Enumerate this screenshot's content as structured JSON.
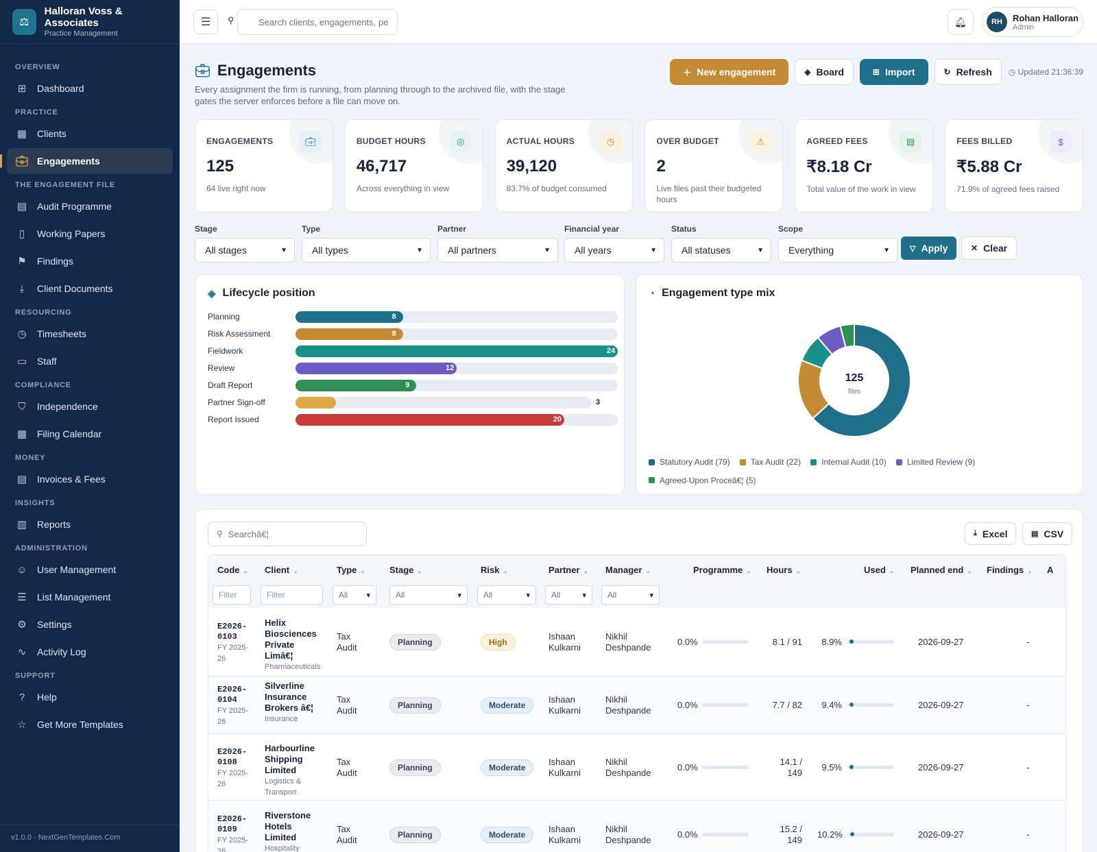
{
  "brand": {
    "name": "Halloran Voss & Associates",
    "sub": "Practice Management",
    "logo_icon": "scales-icon"
  },
  "nav": [
    {
      "section": "OVERVIEW",
      "items": [
        {
          "label": "Dashboard",
          "icon": "grid-icon"
        }
      ]
    },
    {
      "section": "PRACTICE",
      "items": [
        {
          "label": "Clients",
          "icon": "building-icon"
        },
        {
          "label": "Engagements",
          "icon": "briefcase-icon",
          "active": true
        }
      ]
    },
    {
      "section": "THE ENGAGEMENT FILE",
      "items": [
        {
          "label": "Audit Programme",
          "icon": "clipboard-icon"
        },
        {
          "label": "Working Papers",
          "icon": "file-icon"
        },
        {
          "label": "Findings",
          "icon": "flag-icon"
        },
        {
          "label": "Client Documents",
          "icon": "download-file-icon"
        }
      ]
    },
    {
      "section": "RESOURCING",
      "items": [
        {
          "label": "Timesheets",
          "icon": "clock-icon"
        },
        {
          "label": "Staff",
          "icon": "id-card-icon"
        }
      ]
    },
    {
      "section": "COMPLIANCE",
      "items": [
        {
          "label": "Independence",
          "icon": "shield-icon"
        },
        {
          "label": "Filing Calendar",
          "icon": "calendar-icon"
        }
      ]
    },
    {
      "section": "MONEY",
      "items": [
        {
          "label": "Invoices & Fees",
          "icon": "receipt-icon"
        }
      ]
    },
    {
      "section": "INSIGHTS",
      "items": [
        {
          "label": "Reports",
          "icon": "bar-chart-icon"
        }
      ]
    },
    {
      "section": "ADMINISTRATION",
      "items": [
        {
          "label": "User Management",
          "icon": "user-icon"
        },
        {
          "label": "List Management",
          "icon": "list-icon"
        },
        {
          "label": "Settings",
          "icon": "gear-icon"
        },
        {
          "label": "Activity Log",
          "icon": "pulse-icon"
        }
      ]
    },
    {
      "section": "SUPPORT",
      "items": [
        {
          "label": "Help",
          "icon": "help-icon"
        },
        {
          "label": "Get More Templates",
          "icon": "star-icon"
        }
      ]
    }
  ],
  "version": "v1.0.0 · NextGenTemplates.Com",
  "topbar": {
    "search_placeholder": "Search clients, engagements, peo",
    "user_initials": "RH",
    "user_name": "Rohan Halloran",
    "user_role": "Admin"
  },
  "page": {
    "title": "Engagements",
    "desc": "Every assignment the firm is running, from planning through to the archived file, with the stage gates the server enforces before a file can move on.",
    "btn_new": "New engagement",
    "btn_board": "Board",
    "btn_import": "Import",
    "btn_refresh": "Refresh",
    "updated": "Updated 21:36:39"
  },
  "kpis": [
    {
      "label": "ENGAGEMENTS",
      "value": "125",
      "sub": "64 live right now",
      "icon": "briefcase-icon",
      "color": "#21738f",
      "bg": "#e6f1f5"
    },
    {
      "label": "BUDGET HOURS",
      "value": "46,717",
      "sub": "Across everything in view",
      "icon": "target-icon",
      "color": "#1a8f8a",
      "bg": "#e3f4f2"
    },
    {
      "label": "ACTUAL HOURS",
      "value": "39,120",
      "sub": "83.7% of budget consumed",
      "icon": "clock-icon",
      "color": "#c48a34",
      "bg": "#fbf0de"
    },
    {
      "label": "OVER BUDGET",
      "value": "2",
      "sub": "Live files past their budgeted hours",
      "icon": "warning-icon",
      "color": "#c48a34",
      "bg": "#fdf4e0"
    },
    {
      "label": "AGREED FEES",
      "value": "₹8.18 Cr",
      "sub": "Total value of the work in view",
      "icon": "receipt-icon",
      "color": "#2f8f57",
      "bg": "#e4f3ea"
    },
    {
      "label": "FEES BILLED",
      "value": "₹5.88 Cr",
      "sub": "71.9% of agreed fees raised",
      "icon": "dollar-icon",
      "color": "#6d5bc4",
      "bg": "#eeebfa"
    }
  ],
  "filters": [
    {
      "label": "Stage",
      "value": "All stages"
    },
    {
      "label": "Type",
      "value": "All types"
    },
    {
      "label": "Partner",
      "value": "All partners"
    },
    {
      "label": "Financial year",
      "value": "All years"
    },
    {
      "label": "Status",
      "value": "All statuses"
    },
    {
      "label": "Scope",
      "value": "Everything"
    }
  ],
  "filter_apply": "Apply",
  "filter_clear": "Clear",
  "lifecycle": {
    "title": "Lifecycle position",
    "max": 24,
    "stages": [
      {
        "name": "Planning",
        "value": 8,
        "color": "#1f6f8b"
      },
      {
        "name": "Risk Assessment",
        "value": 8,
        "color": "#c48a34"
      },
      {
        "name": "Fieldwork",
        "value": 24,
        "color": "#1a8f8a"
      },
      {
        "name": "Review",
        "value": 12,
        "color": "#6d5bc4"
      },
      {
        "name": "Draft Report",
        "value": 9,
        "color": "#2f8f57"
      },
      {
        "name": "Partner Sign-off",
        "value": 3,
        "color": "#dfa843"
      },
      {
        "name": "Report Issued",
        "value": 20,
        "color": "#c93c3c"
      }
    ]
  },
  "chart_data": {
    "type": "pie",
    "title": "Engagement type mix",
    "center_value": "125",
    "center_label": "files",
    "slices": [
      {
        "name": "Statutory Audit",
        "value": 79,
        "legend": "Statutory Audit (79)",
        "color": "#1f6f8b"
      },
      {
        "name": "Tax Audit",
        "value": 22,
        "legend": "Tax Audit (22)",
        "color": "#c48a34"
      },
      {
        "name": "Internal Audit",
        "value": 10,
        "legend": "Internal Audit (10)",
        "color": "#1a8f8a"
      },
      {
        "name": "Limited Review",
        "value": 9,
        "legend": "Limited Review (9)",
        "color": "#6d5bc4"
      },
      {
        "name": "Agreed-Upon Procedures",
        "value": 5,
        "legend": "Agreed-Upon Proceâ€¦ (5)",
        "color": "#2f8f57"
      }
    ]
  },
  "table": {
    "search_placeholder": "Searchâ€¦",
    "btn_excel": "Excel",
    "btn_csv": "CSV",
    "columns": [
      "Code",
      "Client",
      "Type",
      "Stage",
      "Risk",
      "Partner",
      "Manager",
      "Programme",
      "Hours",
      "Used",
      "Planned end",
      "Findings",
      "A"
    ],
    "filter_text": "Filter",
    "filter_all": "All",
    "rows": [
      {
        "code": "E2026-0103",
        "fy": "FY 2025-26",
        "client": "Helix Biosciences Private Limâ€¦",
        "industry": "Pharmaceuticals",
        "type": "Tax Audit",
        "stage": "Planning",
        "risk": "High",
        "partner": "Ishaan Kulkarni",
        "manager": "Nikhil Deshpande",
        "programme": "0.0%",
        "programme_pct": 0,
        "hours": "8.1 / 91",
        "used": "8.9%",
        "used_pct": 8.9,
        "end": "2026-09-27",
        "findings": "-"
      },
      {
        "code": "E2026-0104",
        "fy": "FY 2025-26",
        "client": "Silverline Insurance Brokers â€¦",
        "industry": "Insurance",
        "type": "Tax Audit",
        "stage": "Planning",
        "risk": "Moderate",
        "partner": "Ishaan Kulkarni",
        "manager": "Nikhil Deshpande",
        "programme": "0.0%",
        "programme_pct": 0,
        "hours": "7.7 / 82",
        "used": "9.4%",
        "used_pct": 9.4,
        "end": "2026-09-27",
        "findings": "-"
      },
      {
        "code": "E2026-0108",
        "fy": "FY 2025-26",
        "client": "Harbourline Shipping Limited",
        "industry": "Logistics & Transport",
        "type": "Tax Audit",
        "stage": "Planning",
        "risk": "Moderate",
        "partner": "Ishaan Kulkarni",
        "manager": "Nikhil Deshpande",
        "programme": "0.0%",
        "programme_pct": 0,
        "hours": "14.1 / 149",
        "used": "9.5%",
        "used_pct": 9.5,
        "end": "2026-09-27",
        "findings": "-"
      },
      {
        "code": "E2026-0109",
        "fy": "FY 2025-26",
        "client": "Riverstone Hotels Limited",
        "industry": "Hospitality",
        "type": "Tax Audit",
        "stage": "Planning",
        "risk": "Moderate",
        "partner": "Ishaan Kulkarni",
        "manager": "Nikhil Deshpande",
        "programme": "0.0%",
        "programme_pct": 0,
        "hours": "15.2 / 149",
        "used": "10.2%",
        "used_pct": 10.2,
        "end": "2026-09-27",
        "findings": "-"
      }
    ]
  }
}
